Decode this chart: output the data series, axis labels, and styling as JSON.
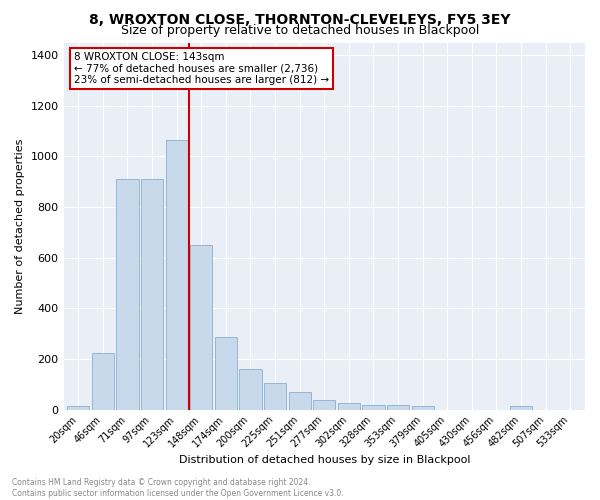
{
  "title1": "8, WROXTON CLOSE, THORNTON-CLEVELEYS, FY5 3EY",
  "title2": "Size of property relative to detached houses in Blackpool",
  "xlabel": "Distribution of detached houses by size in Blackpool",
  "ylabel": "Number of detached properties",
  "bar_color": "#c9d9ec",
  "bar_edge_color": "#8ab0d0",
  "categories": [
    "20sqm",
    "46sqm",
    "71sqm",
    "97sqm",
    "123sqm",
    "148sqm",
    "174sqm",
    "200sqm",
    "225sqm",
    "251sqm",
    "277sqm",
    "302sqm",
    "328sqm",
    "353sqm",
    "379sqm",
    "405sqm",
    "430sqm",
    "456sqm",
    "482sqm",
    "507sqm",
    "533sqm"
  ],
  "values": [
    15,
    225,
    910,
    910,
    1065,
    650,
    285,
    160,
    105,
    70,
    37,
    25,
    20,
    18,
    13,
    0,
    0,
    0,
    13,
    0,
    0
  ],
  "vline_pos": 5,
  "vline_color": "#cc0000",
  "annotation_text": "8 WROXTON CLOSE: 143sqm\n← 77% of detached houses are smaller (2,736)\n23% of semi-detached houses are larger (812) →",
  "annotation_box_color": "#ffffff",
  "annotation_edge_color": "#cc0000",
  "ylim": [
    0,
    1450
  ],
  "yticks": [
    0,
    200,
    400,
    600,
    800,
    1000,
    1200,
    1400
  ],
  "footer_text": "Contains HM Land Registry data © Crown copyright and database right 2024.\nContains public sector information licensed under the Open Government Licence v3.0.",
  "plot_bg_color": "#eaeff7",
  "grid_color": "#ffffff",
  "title1_fontsize": 10,
  "title2_fontsize": 9,
  "ylabel_fontsize": 8,
  "xlabel_fontsize": 8,
  "tick_fontsize": 7,
  "footer_fontsize": 5.5
}
